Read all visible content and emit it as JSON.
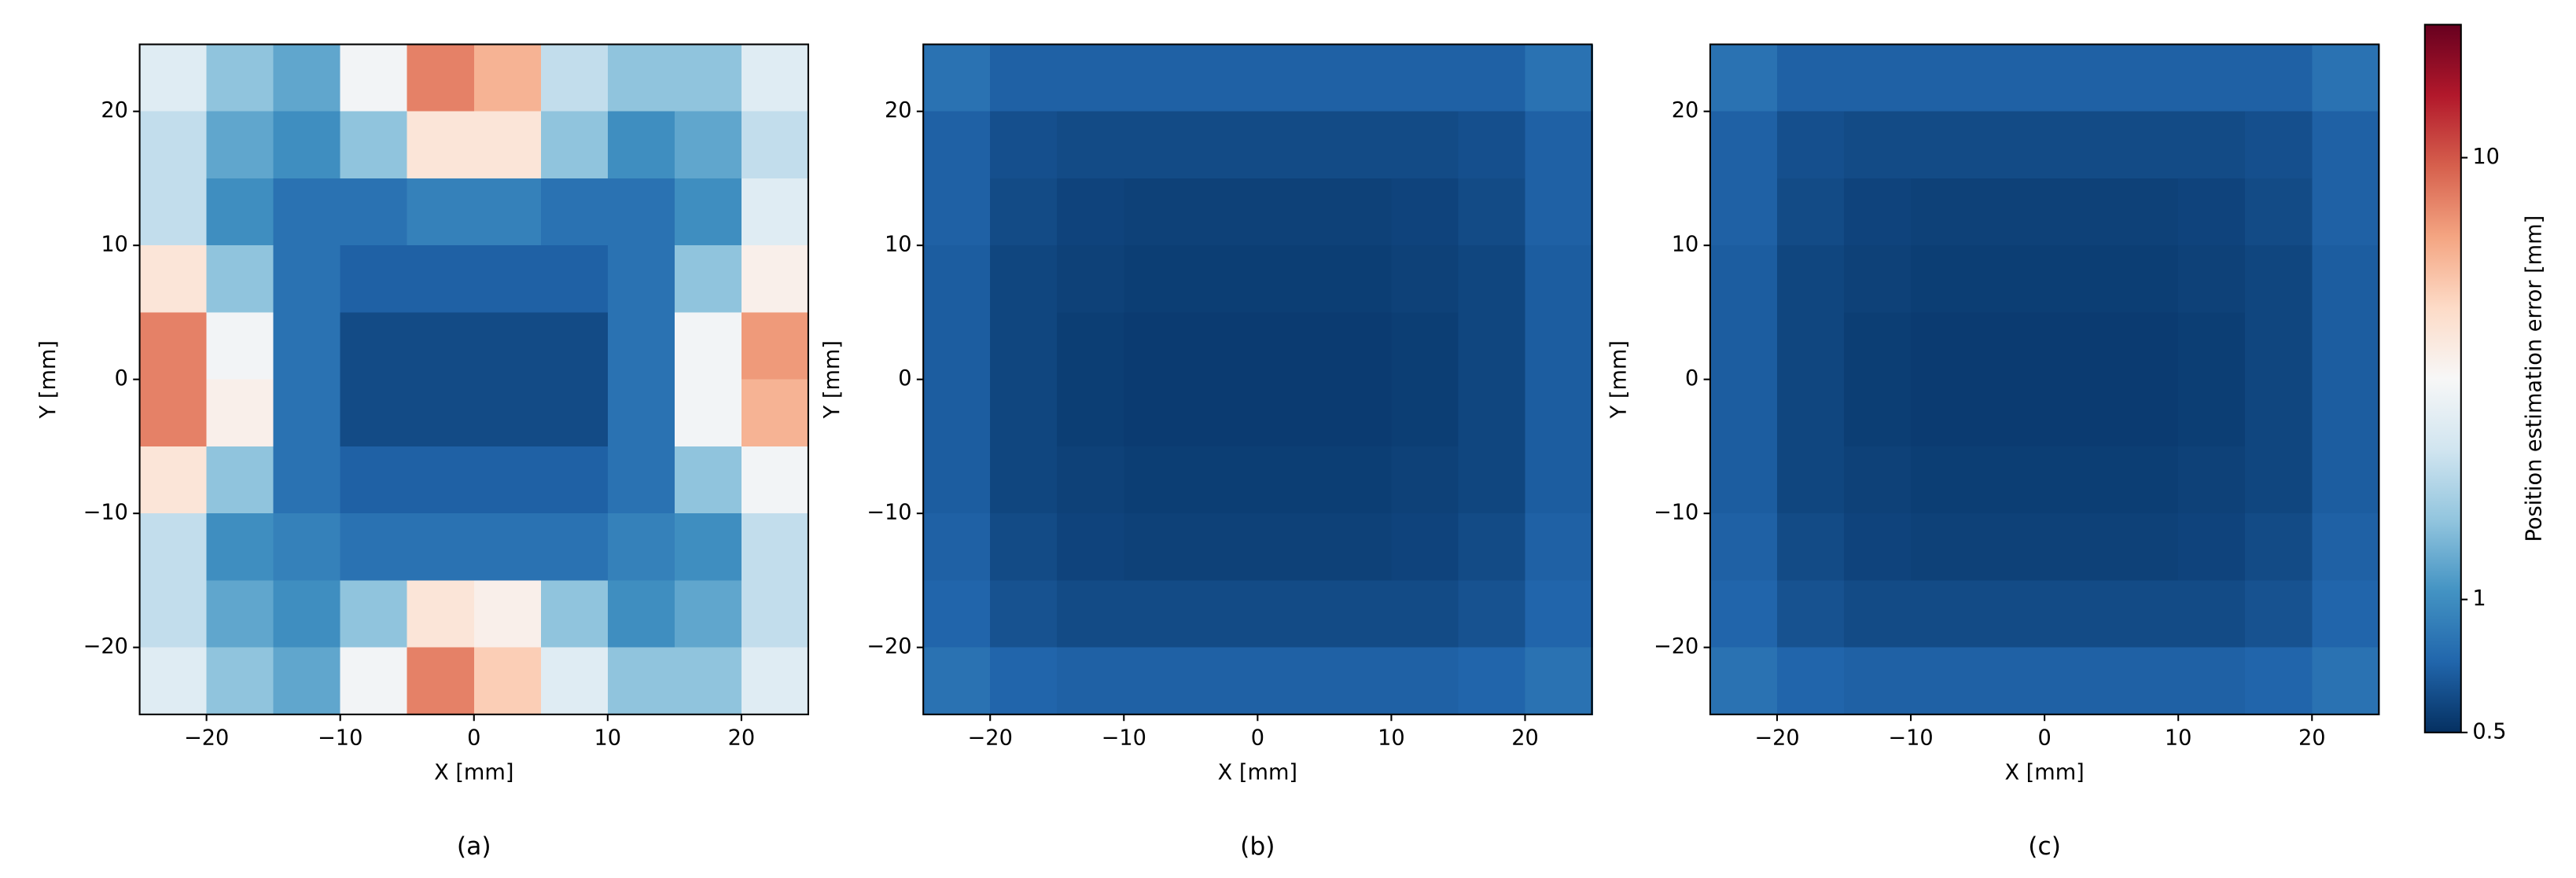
{
  "chart_data": [
    {
      "type": "heatmap",
      "caption": "(a)",
      "xlabel": "X [mm]",
      "ylabel": "Y [mm]",
      "xlim": [
        -25,
        25
      ],
      "ylim": [
        -25,
        25
      ],
      "xticks": [
        {
          "value": -20,
          "label": "−20"
        },
        {
          "value": -10,
          "label": "−10"
        },
        0,
        10,
        20
      ],
      "yticks": [
        {
          "value": -20,
          "label": "−20"
        },
        {
          "value": -10,
          "label": "−10"
        },
        0,
        10,
        20
      ],
      "x": [
        -22.5,
        -17.5,
        -12.5,
        -7.5,
        -2.5,
        2.5,
        7.5,
        12.5,
        17.5,
        22.5
      ],
      "y": [
        22.5,
        17.5,
        12.5,
        7.5,
        2.5,
        -2.5,
        -7.5,
        -12.5,
        -17.5,
        -22.5
      ],
      "z": [
        [
          2.5,
          1.5,
          1.2,
          3,
          8,
          6,
          2,
          1.5,
          1.5,
          2.5
        ],
        [
          2,
          1.2,
          1,
          1.5,
          4,
          4,
          1.5,
          1,
          1.2,
          2
        ],
        [
          2,
          1,
          0.8,
          0.8,
          0.9,
          0.9,
          0.8,
          0.8,
          1,
          2.5
        ],
        [
          4,
          1.5,
          0.8,
          0.7,
          0.7,
          0.7,
          0.7,
          0.8,
          1.5,
          3.5
        ],
        [
          8,
          3,
          0.8,
          0.6,
          0.6,
          0.6,
          0.6,
          0.8,
          3,
          7
        ],
        [
          8,
          3.5,
          0.8,
          0.6,
          0.6,
          0.6,
          0.6,
          0.8,
          3,
          6
        ],
        [
          4,
          1.5,
          0.8,
          0.7,
          0.7,
          0.7,
          0.7,
          0.8,
          1.5,
          3
        ],
        [
          2,
          1,
          0.9,
          0.8,
          0.8,
          0.8,
          0.8,
          0.9,
          1,
          2
        ],
        [
          2,
          1.2,
          1,
          1.5,
          4,
          3.5,
          1.5,
          1,
          1.2,
          2
        ],
        [
          2.5,
          1.5,
          1.2,
          3,
          8,
          5,
          2.5,
          1.5,
          1.5,
          2.5
        ]
      ]
    },
    {
      "type": "heatmap",
      "caption": "(b)",
      "xlabel": "X [mm]",
      "ylabel": "Y [mm]",
      "xlim": [
        -25,
        25
      ],
      "ylim": [
        -25,
        25
      ],
      "xticks": [
        {
          "value": -20,
          "label": "−20"
        },
        {
          "value": -10,
          "label": "−10"
        },
        0,
        10,
        20
      ],
      "yticks": [
        {
          "value": -20,
          "label": "−20"
        },
        {
          "value": -10,
          "label": "−10"
        },
        0,
        10,
        20
      ],
      "x": [
        -22.5,
        -17.5,
        -12.5,
        -7.5,
        -2.5,
        2.5,
        7.5,
        12.5,
        17.5,
        22.5
      ],
      "y": [
        22.5,
        17.5,
        12.5,
        7.5,
        2.5,
        -2.5,
        -7.5,
        -12.5,
        -17.5,
        -22.5
      ],
      "z": [
        [
          0.8,
          0.7,
          0.7,
          0.7,
          0.7,
          0.7,
          0.7,
          0.7,
          0.7,
          0.8
        ],
        [
          0.7,
          0.62,
          0.6,
          0.6,
          0.6,
          0.6,
          0.6,
          0.6,
          0.62,
          0.7
        ],
        [
          0.7,
          0.6,
          0.57,
          0.56,
          0.56,
          0.56,
          0.56,
          0.57,
          0.6,
          0.7
        ],
        [
          0.68,
          0.58,
          0.56,
          0.55,
          0.55,
          0.55,
          0.55,
          0.56,
          0.58,
          0.68
        ],
        [
          0.68,
          0.58,
          0.55,
          0.54,
          0.54,
          0.54,
          0.54,
          0.55,
          0.58,
          0.68
        ],
        [
          0.68,
          0.58,
          0.55,
          0.54,
          0.54,
          0.54,
          0.54,
          0.55,
          0.58,
          0.68
        ],
        [
          0.68,
          0.58,
          0.56,
          0.55,
          0.55,
          0.55,
          0.55,
          0.56,
          0.58,
          0.68
        ],
        [
          0.7,
          0.6,
          0.57,
          0.56,
          0.56,
          0.56,
          0.56,
          0.57,
          0.6,
          0.7
        ],
        [
          0.72,
          0.63,
          0.6,
          0.6,
          0.6,
          0.6,
          0.6,
          0.6,
          0.63,
          0.72
        ],
        [
          0.8,
          0.72,
          0.7,
          0.7,
          0.7,
          0.7,
          0.7,
          0.7,
          0.72,
          0.8
        ]
      ]
    },
    {
      "type": "heatmap",
      "caption": "(c)",
      "xlabel": "X [mm]",
      "ylabel": "Y [mm]",
      "xlim": [
        -25,
        25
      ],
      "ylim": [
        -25,
        25
      ],
      "xticks": [
        {
          "value": -20,
          "label": "−20"
        },
        {
          "value": -10,
          "label": "−10"
        },
        0,
        10,
        20
      ],
      "yticks": [
        {
          "value": -20,
          "label": "−20"
        },
        {
          "value": -10,
          "label": "−10"
        },
        0,
        10,
        20
      ],
      "x": [
        -22.5,
        -17.5,
        -12.5,
        -7.5,
        -2.5,
        2.5,
        7.5,
        12.5,
        17.5,
        22.5
      ],
      "y": [
        22.5,
        17.5,
        12.5,
        7.5,
        2.5,
        -2.5,
        -7.5,
        -12.5,
        -17.5,
        -22.5
      ],
      "z": [
        [
          0.8,
          0.7,
          0.7,
          0.7,
          0.7,
          0.7,
          0.7,
          0.7,
          0.7,
          0.8
        ],
        [
          0.7,
          0.62,
          0.6,
          0.6,
          0.6,
          0.6,
          0.6,
          0.6,
          0.62,
          0.7
        ],
        [
          0.7,
          0.6,
          0.57,
          0.56,
          0.56,
          0.56,
          0.56,
          0.57,
          0.6,
          0.7
        ],
        [
          0.68,
          0.58,
          0.56,
          0.55,
          0.55,
          0.55,
          0.55,
          0.56,
          0.58,
          0.68
        ],
        [
          0.68,
          0.58,
          0.55,
          0.54,
          0.54,
          0.54,
          0.54,
          0.55,
          0.58,
          0.68
        ],
        [
          0.68,
          0.58,
          0.55,
          0.54,
          0.54,
          0.54,
          0.54,
          0.55,
          0.58,
          0.68
        ],
        [
          0.68,
          0.58,
          0.56,
          0.55,
          0.55,
          0.55,
          0.55,
          0.56,
          0.58,
          0.68
        ],
        [
          0.7,
          0.6,
          0.57,
          0.56,
          0.56,
          0.56,
          0.56,
          0.57,
          0.6,
          0.7
        ],
        [
          0.72,
          0.63,
          0.6,
          0.6,
          0.6,
          0.6,
          0.6,
          0.6,
          0.63,
          0.72
        ],
        [
          0.8,
          0.72,
          0.7,
          0.7,
          0.7,
          0.7,
          0.7,
          0.7,
          0.72,
          0.8
        ]
      ]
    }
  ],
  "colorbar": {
    "label": "Position estimation error [mm]",
    "scale": "log",
    "lim": [
      0.5,
      20
    ],
    "ticks": [
      0.5,
      1,
      10
    ],
    "colormap": [
      "#053061",
      "#2166ac",
      "#4393c3",
      "#92c5de",
      "#d1e5f0",
      "#f7f7f7",
      "#fddbc7",
      "#f4a582",
      "#d6604d",
      "#b2182b",
      "#67001f"
    ]
  }
}
